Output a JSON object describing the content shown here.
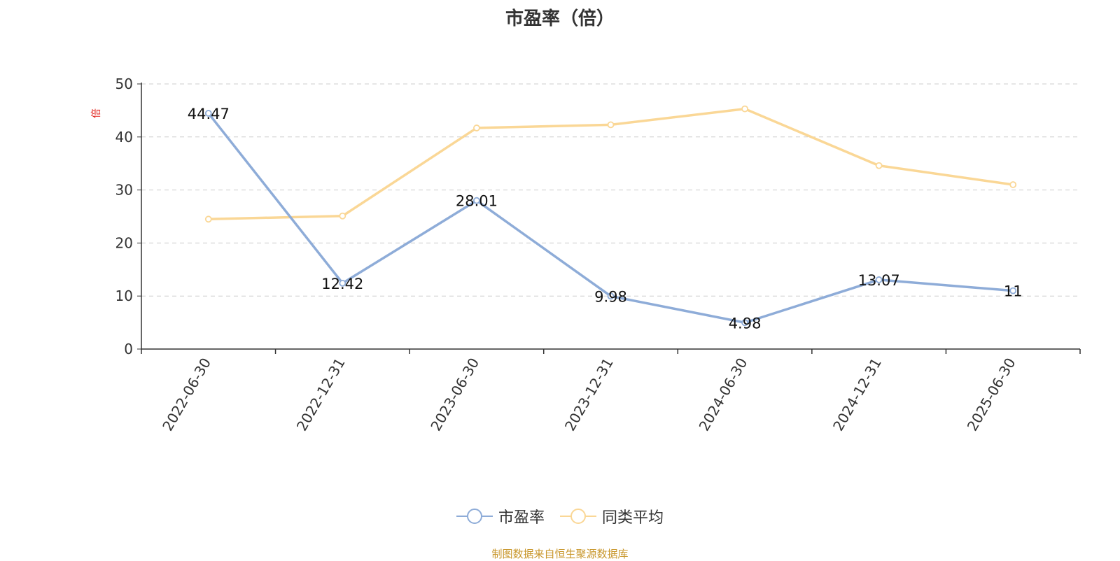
{
  "chart_data": {
    "type": "line",
    "title": "市盈率（倍）",
    "unit_label": "倍",
    "x": [
      "2022-06-30",
      "2022-12-31",
      "2023-06-30",
      "2023-12-31",
      "2024-06-30",
      "2024-12-31",
      "2025-06-30"
    ],
    "ylim": [
      0,
      50
    ],
    "yticks": [
      0,
      10,
      20,
      30,
      40,
      50
    ],
    "grid": true,
    "legend_position": "bottom-center",
    "series": [
      {
        "name": "市盈率",
        "color": "#8eacd8",
        "values": [
          44.47,
          12.42,
          28.01,
          9.98,
          4.98,
          13.07,
          11
        ],
        "data_labels": [
          "44.47",
          "12.42",
          "28.01",
          "9.98",
          "4.98",
          "13.07",
          "11"
        ]
      },
      {
        "name": "同类平均",
        "color": "#fad796",
        "values": [
          24.5,
          25.1,
          41.7,
          42.3,
          45.3,
          34.6,
          31.0
        ]
      }
    ],
    "source": "制图数据来自恒生聚源数据库"
  }
}
